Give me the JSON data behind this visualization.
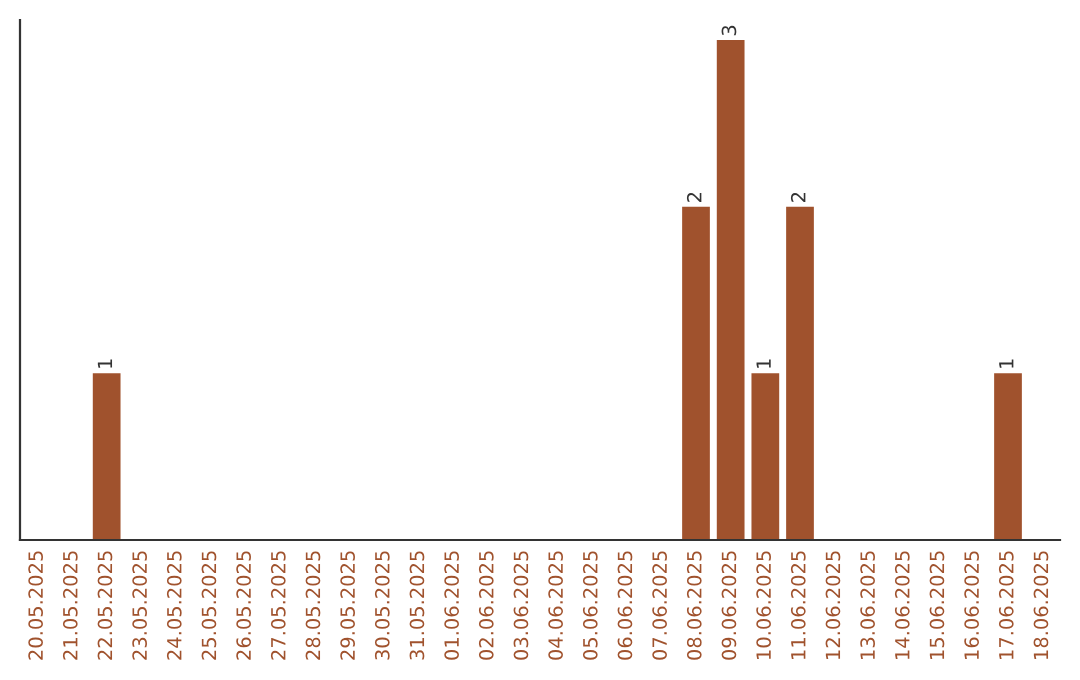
{
  "chart_data": {
    "type": "bar",
    "categories": [
      "20.05.2025",
      "21.05.2025",
      "22.05.2025",
      "23.05.2025",
      "24.05.2025",
      "25.05.2025",
      "26.05.2025",
      "27.05.2025",
      "28.05.2025",
      "29.05.2025",
      "30.05.2025",
      "31.05.2025",
      "01.06.2025",
      "02.06.2025",
      "03.06.2025",
      "04.06.2025",
      "05.06.2025",
      "06.06.2025",
      "07.06.2025",
      "08.06.2025",
      "09.06.2025",
      "10.06.2025",
      "11.06.2025",
      "12.06.2025",
      "13.06.2025",
      "14.06.2025",
      "15.06.2025",
      "16.06.2025",
      "17.06.2025",
      "18.06.2025"
    ],
    "values": [
      0,
      0,
      1,
      0,
      0,
      0,
      0,
      0,
      0,
      0,
      0,
      0,
      0,
      0,
      0,
      0,
      0,
      0,
      0,
      2,
      3,
      1,
      2,
      0,
      0,
      0,
      0,
      0,
      1,
      0
    ],
    "color": "#a0522d",
    "value_labels": [
      null,
      null,
      "1",
      null,
      null,
      null,
      null,
      null,
      null,
      null,
      null,
      null,
      null,
      null,
      null,
      null,
      null,
      null,
      null,
      "2",
      "3",
      "1",
      "2",
      null,
      null,
      null,
      null,
      null,
      "1",
      null
    ],
    "tick_labels": "x",
    "grid": false,
    "legend": false
  }
}
